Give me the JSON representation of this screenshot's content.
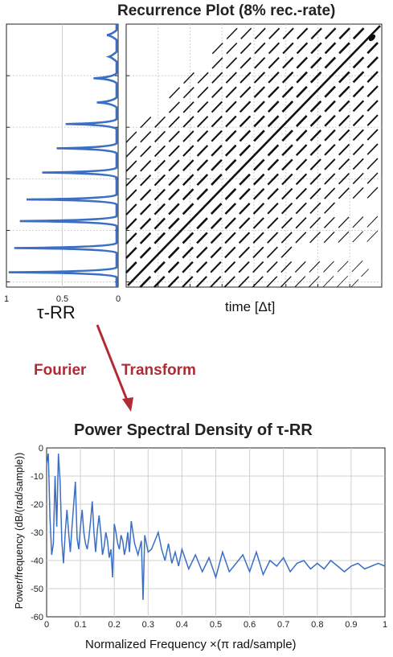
{
  "figure": {
    "top_left_title": "Recurrence Plot (8% rec.-rate)",
    "left_panel_xlabel": "τ-RR",
    "rp_xlabel": "time [Δt]",
    "arrow_text_1": "Fourier",
    "arrow_text_2": "Transform",
    "colors": {
      "line": "#3a6fc4",
      "arrow": "#b12b34",
      "rp_marks": "#111111",
      "grid": "#d0d0d0"
    }
  },
  "chart_data": [
    {
      "type": "line",
      "title": "",
      "xlabel": "τ-RR",
      "ylabel": "",
      "x_reversed": true,
      "xlim": [
        0,
        1
      ],
      "xticks": [
        "1",
        "0.5",
        "0"
      ],
      "grid": true,
      "peaks": [
        {
          "lag": 0.46,
          "value": 0.1
        },
        {
          "lag": 0.42,
          "value": 0.08
        },
        {
          "lag": 0.38,
          "value": 0.22
        },
        {
          "lag": 0.335,
          "value": 0.19
        },
        {
          "lag": 0.295,
          "value": 0.47
        },
        {
          "lag": 0.25,
          "value": 0.55
        },
        {
          "lag": 0.205,
          "value": 0.68
        },
        {
          "lag": 0.155,
          "value": 0.82
        },
        {
          "lag": 0.115,
          "value": 0.88
        },
        {
          "lag": 0.065,
          "value": 0.93
        },
        {
          "lag": 0.02,
          "value": 0.98
        }
      ]
    },
    {
      "type": "scatter",
      "title": "Recurrence Plot (8% rec.-rate)",
      "xlabel": "time [Δt]",
      "ylabel": "",
      "grid": true,
      "diagonal_spacing": 0.055,
      "num_diagonals": 16
    },
    {
      "type": "line",
      "title": "Power Spectral Density of τ-RR",
      "xlabel": "Normalized Frequency ×(π rad/sample)",
      "ylabel": "Power/frequency (dB/(rad/sample))",
      "xlim": [
        0,
        1
      ],
      "ylim": [
        -60,
        0
      ],
      "xticks": [
        "0",
        "0.1",
        "0.2",
        "0.3",
        "0.4",
        "0.5",
        "0.6",
        "0.7",
        "0.8",
        "0.9",
        "1"
      ],
      "yticks": [
        "0",
        "-10",
        "-20",
        "-30",
        "-40",
        "-50",
        "-60"
      ],
      "grid": true,
      "series": [
        {
          "x": [
            0,
            0.005,
            0.01,
            0.015,
            0.02,
            0.025,
            0.03,
            0.035,
            0.04,
            0.045,
            0.05,
            0.055,
            0.06,
            0.065,
            0.07,
            0.075,
            0.08,
            0.085,
            0.09,
            0.095,
            0.1,
            0.105,
            0.11,
            0.115,
            0.12,
            0.125,
            0.13,
            0.135,
            0.14,
            0.145,
            0.15,
            0.155,
            0.16,
            0.165,
            0.17,
            0.175,
            0.18,
            0.185,
            0.19,
            0.195,
            0.2,
            0.205,
            0.21,
            0.215,
            0.22,
            0.225,
            0.23,
            0.235,
            0.24,
            0.245,
            0.25,
            0.26,
            0.27,
            0.28,
            0.285,
            0.29,
            0.3,
            0.31,
            0.32,
            0.33,
            0.34,
            0.35,
            0.36,
            0.37,
            0.38,
            0.39,
            0.4,
            0.42,
            0.44,
            0.46,
            0.48,
            0.5,
            0.52,
            0.54,
            0.56,
            0.58,
            0.6,
            0.62,
            0.64,
            0.66,
            0.68,
            0.7,
            0.72,
            0.74,
            0.76,
            0.78,
            0.8,
            0.82,
            0.84,
            0.86,
            0.88,
            0.9,
            0.92,
            0.94,
            0.96,
            0.98,
            1
          ],
          "y": [
            -6,
            -2,
            -25,
            -38,
            -34,
            -10,
            -28,
            -2,
            -12,
            -33,
            -41,
            -30,
            -22,
            -30,
            -37,
            -28,
            -20,
            -12,
            -32,
            -36,
            -28,
            -22,
            -30,
            -34,
            -36,
            -32,
            -26,
            -19,
            -30,
            -37,
            -29,
            -24,
            -30,
            -38,
            -35,
            -30,
            -33,
            -39,
            -36,
            -46,
            -27,
            -30,
            -34,
            -36,
            -31,
            -33,
            -38,
            -35,
            -30,
            -37,
            -26,
            -34,
            -38,
            -33,
            -54,
            -31,
            -37,
            -36,
            -33,
            -30,
            -36,
            -40,
            -34,
            -41,
            -37,
            -42,
            -36,
            -43,
            -38,
            -44,
            -39,
            -46,
            -37,
            -44,
            -41,
            -38,
            -44,
            -37,
            -45,
            -40,
            -42,
            -39,
            -44,
            -41,
            -40,
            -43,
            -41,
            -43,
            -40,
            -42,
            -44,
            -42,
            -41,
            -43,
            -42,
            -41,
            -42
          ]
        }
      ]
    }
  ]
}
